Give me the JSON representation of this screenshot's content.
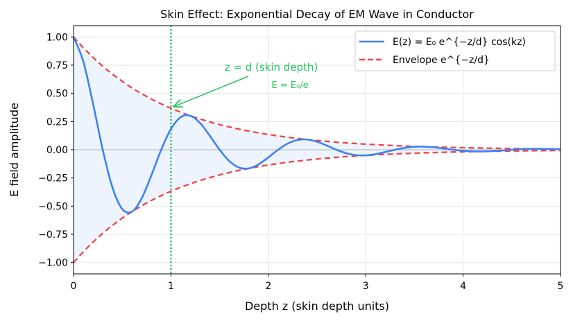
{
  "chart_data": {
    "type": "line",
    "title": "Skin Effect: Exponential Decay of EM Wave in Conductor",
    "xlabel": "Depth z (skin depth units)",
    "ylabel": "E field amplitude",
    "xlim": [
      0,
      5
    ],
    "ylim": [
      -1.1,
      1.1
    ],
    "xticks": [
      "0",
      "1",
      "2",
      "3",
      "4",
      "5"
    ],
    "yticks": [
      "1.00",
      "0.75",
      "0.50",
      "0.25",
      "0.00",
      "−0.25",
      "−0.50",
      "−0.75",
      "−1.00"
    ],
    "grid": true,
    "legend_position": "top-right",
    "x": [
      0,
      0.1,
      0.2,
      0.3,
      0.4,
      0.5,
      0.6,
      0.7,
      0.8,
      0.9,
      1.0,
      1.1,
      1.2,
      1.3,
      1.4,
      1.5,
      1.6,
      1.7,
      1.8,
      1.9,
      2.0,
      2.1,
      2.2,
      2.3,
      2.4,
      2.5,
      2.6,
      2.7,
      2.8,
      2.9,
      3.0,
      3.1,
      3.2,
      3.3,
      3.4,
      3.5,
      3.6,
      3.7,
      3.8,
      3.9,
      4.0,
      4.1,
      4.2,
      4.3,
      4.4,
      4.5,
      4.6,
      4.7,
      4.8,
      4.9,
      5.0
    ],
    "series": [
      {
        "name": "E(z) = E₀ e^{−z/d} cos(kz)",
        "color": "#3b82f6",
        "style": "solid",
        "values": [
          1,
          0.7836,
          0.4094,
          0,
          -0.3352,
          -0.5253,
          -0.5488,
          -0.43,
          -0.2247,
          0,
          0.1839,
          0.2883,
          0.3012,
          0.236,
          0.1233,
          0,
          -0.1009,
          -0.1582,
          -0.1653,
          -0.1295,
          -0.0677,
          0,
          0.0554,
          0.0868,
          0.0907,
          0.0711,
          0.0371,
          0,
          -0.0304,
          -0.0476,
          -0.0498,
          -0.039,
          -0.0204,
          0,
          0.0167,
          0.0262,
          0.0273,
          0.0214,
          0.0112,
          0,
          -0.0092,
          -0.0144,
          -0.015,
          -0.0118,
          -0.0061,
          0,
          0.005,
          0.0079,
          0.0082,
          0.0064,
          0.0034
        ]
      },
      {
        "name": "Envelope e^{−z/d}",
        "color": "#ef4444",
        "style": "dashed",
        "values": [
          1,
          0.9048,
          0.8187,
          0.7408,
          0.6703,
          0.6065,
          0.5488,
          0.4966,
          0.4493,
          0.4066,
          0.3679,
          0.3329,
          0.3012,
          0.2725,
          0.2466,
          0.2231,
          0.2019,
          0.1827,
          0.1653,
          0.1496,
          0.1353,
          0.1225,
          0.1108,
          0.1003,
          0.0907,
          0.0821,
          0.0743,
          0.0672,
          0.0608,
          0.055,
          0.0498,
          0.045,
          0.0408,
          0.0369,
          0.0334,
          0.0302,
          0.0273,
          0.0247,
          0.0224,
          0.0202,
          0.0183,
          0.0166,
          0.015,
          0.0136,
          0.0123,
          0.0111,
          0.0101,
          0.0091,
          0.0082,
          0.0074,
          0.0067
        ]
      }
    ],
    "fill_color": "#eef4fd",
    "vline": {
      "x": 1,
      "color": "#22c55e",
      "style": "dotted"
    },
    "annotation": {
      "text": "z = d (skin depth)",
      "subtext": "E = E₀/e",
      "color": "#22c55e",
      "points_to": [
        1,
        0.3679
      ]
    }
  }
}
